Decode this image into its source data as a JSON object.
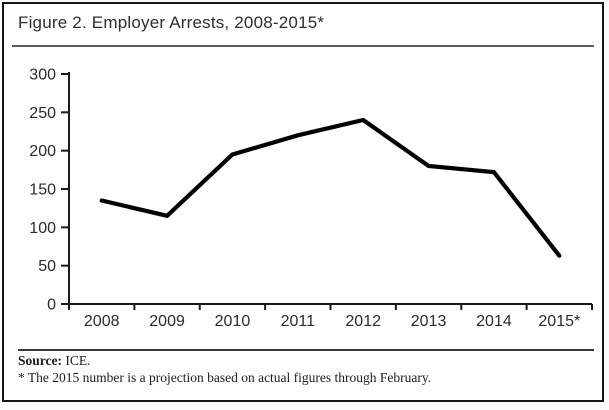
{
  "figure": {
    "title": "Figure 2. Employer Arrests, 2008-2015*",
    "source_label": "Source:",
    "source_value": "ICE.",
    "footnote": "* The 2015 number is a projection based on actual figures through February."
  },
  "colors": {
    "border": "#161616",
    "title_text": "#2d2d2d",
    "axis": "#1a1a1a",
    "tick_text": "#2b2b2b",
    "line": "#000000",
    "title_rule": "#5e5e5e",
    "footer_rule": "#3b3b3b"
  },
  "chart_data": {
    "type": "line",
    "title": "Figure 2. Employer Arrests, 2008-2015*",
    "categories": [
      "2008",
      "2009",
      "2010",
      "2011",
      "2012",
      "2013",
      "2014",
      "2015*"
    ],
    "values": [
      135,
      115,
      195,
      220,
      240,
      180,
      172,
      63
    ],
    "xlabel": "",
    "ylabel": "",
    "ylim": [
      0,
      300
    ],
    "y_ticks": [
      0,
      50,
      100,
      150,
      200,
      250,
      300
    ],
    "grid": false,
    "legend": false,
    "line_width": 4.2,
    "source": "Source: ICE.",
    "annotation": "* The 2015 number is a projection based on actual figures through February."
  }
}
